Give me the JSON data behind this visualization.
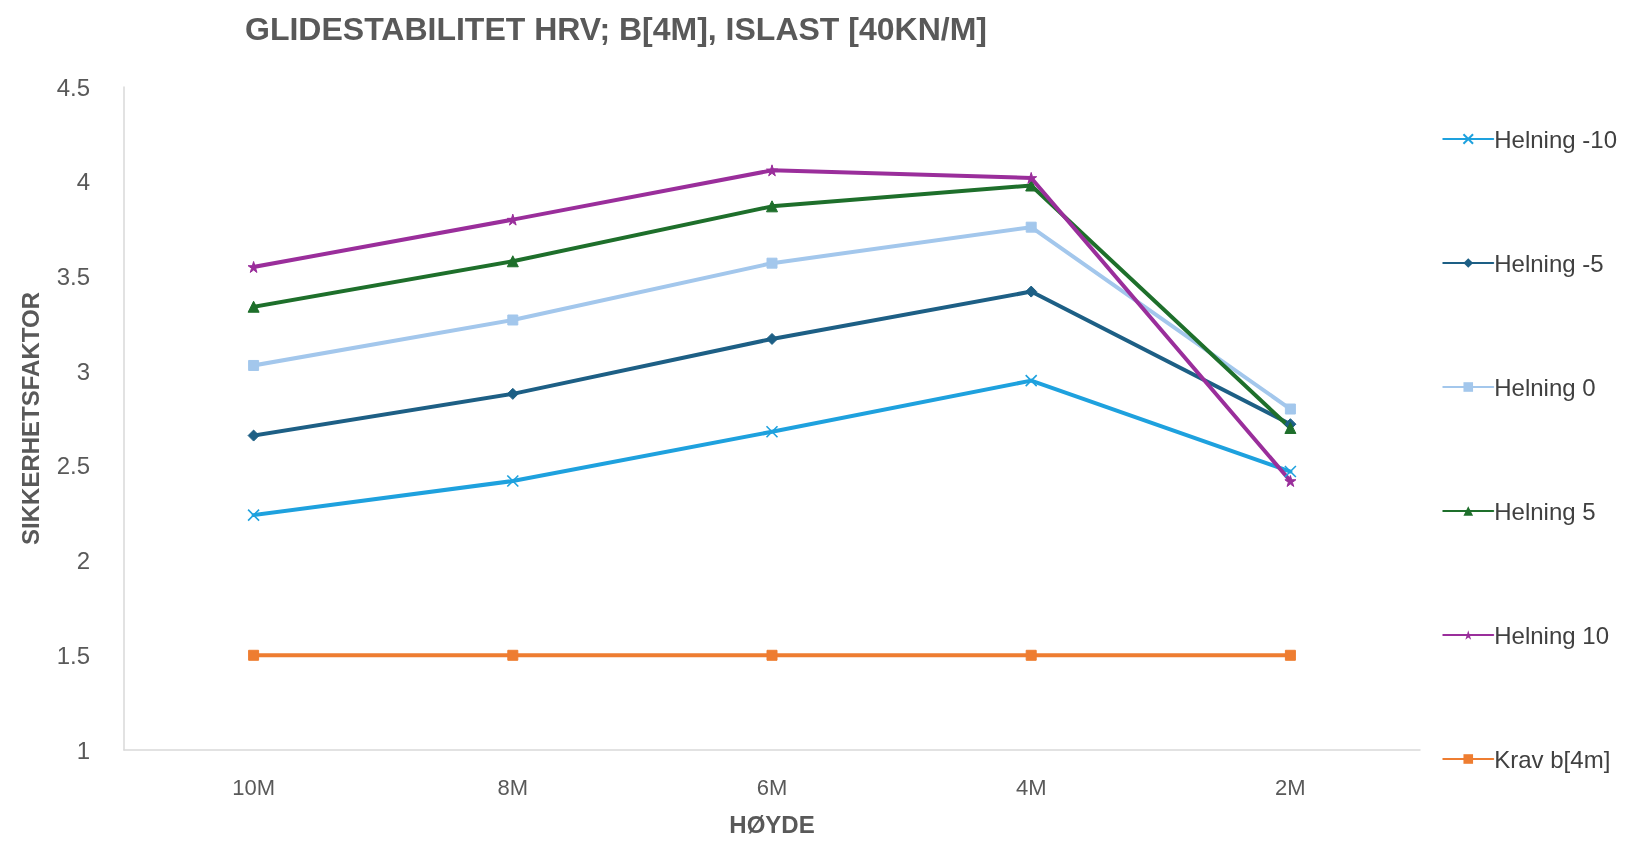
{
  "chart_data": {
    "type": "line",
    "title": "GLIDESTABILITET HRV; B[4M], ISLAST [40KN/M]",
    "xlabel": "HØYDE",
    "ylabel": "SIKKERHETSFAKTOR",
    "categories": [
      "10M",
      "8M",
      "6M",
      "4M",
      "2M"
    ],
    "series": [
      {
        "name": "Helning -10",
        "color": "#1ea1de",
        "marker": "cross",
        "values": [
          2.24,
          2.42,
          2.68,
          2.95,
          2.47
        ]
      },
      {
        "name": "Helning -5",
        "color": "#1d5f85",
        "marker": "diamond",
        "values": [
          2.66,
          2.88,
          3.17,
          3.42,
          2.72
        ]
      },
      {
        "name": "Helning 0",
        "color": "#a3c7ec",
        "marker": "square",
        "values": [
          3.03,
          3.27,
          3.57,
          3.76,
          2.8
        ]
      },
      {
        "name": "Helning 5",
        "color": "#1e6f2b",
        "marker": "triangle",
        "values": [
          3.34,
          3.58,
          3.87,
          3.98,
          2.7
        ]
      },
      {
        "name": "Helning 10",
        "color": "#9a2e9b",
        "marker": "star",
        "values": [
          3.55,
          3.8,
          4.06,
          4.02,
          2.42
        ]
      },
      {
        "name": "Krav b[4m]",
        "color": "#ee7d31",
        "marker": "square",
        "values": [
          1.5,
          1.5,
          1.5,
          1.5,
          1.5
        ]
      }
    ],
    "ylim": [
      1,
      4.5
    ],
    "yticks": [
      1,
      1.5,
      2,
      2.5,
      3,
      3.5,
      4,
      4.5
    ],
    "grid": false,
    "legend": "right",
    "line_style": "solid"
  }
}
